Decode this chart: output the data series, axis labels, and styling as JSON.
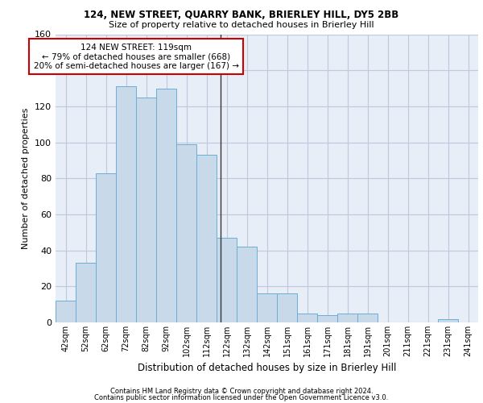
{
  "title1": "124, NEW STREET, QUARRY BANK, BRIERLEY HILL, DY5 2BB",
  "title2": "Size of property relative to detached houses in Brierley Hill",
  "xlabel": "Distribution of detached houses by size in Brierley Hill",
  "ylabel": "Number of detached properties",
  "footer1": "Contains HM Land Registry data © Crown copyright and database right 2024.",
  "footer2": "Contains public sector information licensed under the Open Government Licence v3.0.",
  "bar_labels": [
    "42sqm",
    "52sqm",
    "62sqm",
    "72sqm",
    "82sqm",
    "92sqm",
    "102sqm",
    "112sqm",
    "122sqm",
    "132sqm",
    "142sqm",
    "151sqm",
    "161sqm",
    "171sqm",
    "181sqm",
    "191sqm",
    "201sqm",
    "211sqm",
    "221sqm",
    "231sqm",
    "241sqm"
  ],
  "bar_values": [
    12,
    33,
    83,
    131,
    125,
    130,
    99,
    93,
    47,
    42,
    16,
    16,
    5,
    4,
    5,
    5,
    0,
    0,
    0,
    2,
    0
  ],
  "bar_color": "#c8daea",
  "bar_edge_color": "#6aaed6",
  "grid_color": "#c0c8dc",
  "bg_color": "#e8eef8",
  "annotation_text": "124 NEW STREET: 119sqm\n← 79% of detached houses are smaller (668)\n20% of semi-detached houses are larger (167) →",
  "annotation_box_color": "#ffffff",
  "annotation_border_color": "#cc0000",
  "vline_color": "#333333",
  "ylim": [
    0,
    160
  ],
  "yticks": [
    0,
    20,
    40,
    60,
    80,
    100,
    120,
    140,
    160
  ]
}
